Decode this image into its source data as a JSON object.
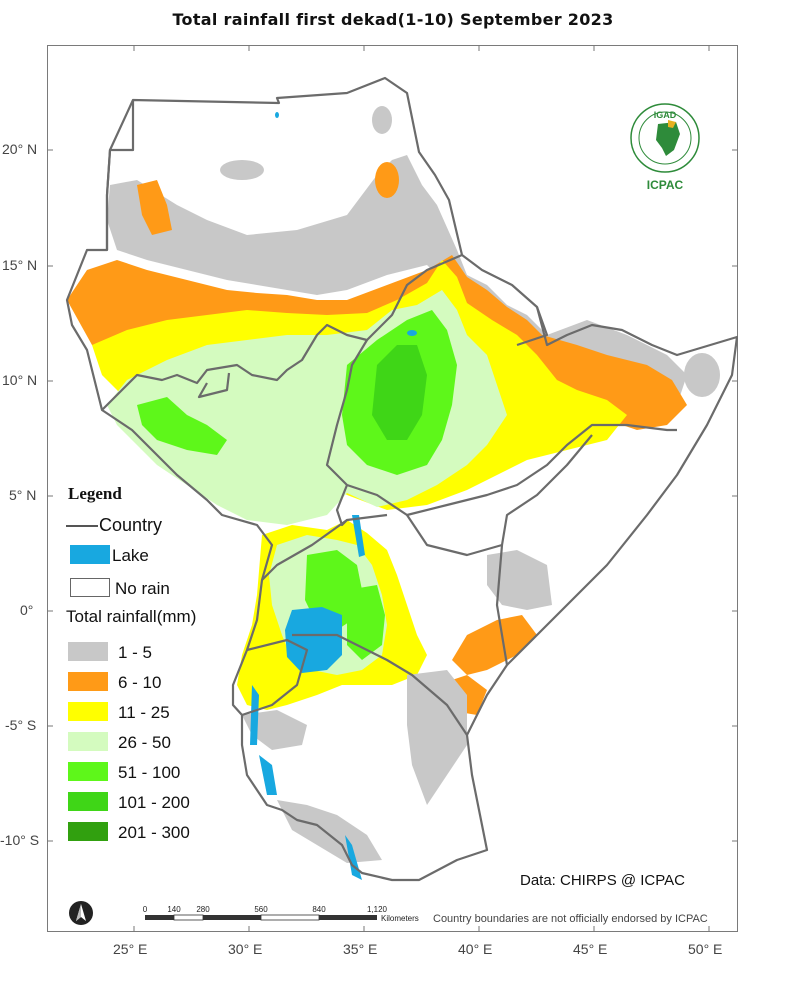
{
  "title": "Total rainfall   first dekad(1-10)  September  2023",
  "latitude_labels": [
    "20° N",
    "15° N",
    "10° N",
    "5° N",
    "0°",
    "-5° S",
    "-10° S"
  ],
  "longitude_labels": [
    "25° E",
    "30° E",
    "35° E",
    "40° E",
    "45° E",
    "50° E"
  ],
  "legend": {
    "heading": "Legend",
    "country_label": "Country",
    "lake_label": "Lake",
    "no_rain_label": "No rain",
    "total_rainfall_label": "Total rainfall(mm)",
    "classes": [
      {
        "label": "1 - 5",
        "color": "#c8c8c8"
      },
      {
        "label": "6 - 10",
        "color": "#ff9a17"
      },
      {
        "label": "11 - 25",
        "color": "#ffff00"
      },
      {
        "label": "26 - 50",
        "color": "#d4fbbf"
      },
      {
        "label": "51 - 100",
        "color": "#5ef71a"
      },
      {
        "label": "101 - 200",
        "color": "#3fd617"
      },
      {
        "label": "201 - 300",
        "color": "#31a00f"
      }
    ],
    "lake_color": "#18a8e0",
    "no_rain_color": "#ffffff"
  },
  "data_source": "Data: CHIRPS @ ICPAC",
  "disclaimer": "Country boundaries are not officially endorsed by ICPAC",
  "scale": {
    "ticks": [
      "0",
      "140",
      "280",
      "560",
      "840",
      "1,120"
    ],
    "unit": "Kilometers"
  },
  "logo": {
    "text_top": "IGAD",
    "text_bottom": "ICPAC"
  }
}
